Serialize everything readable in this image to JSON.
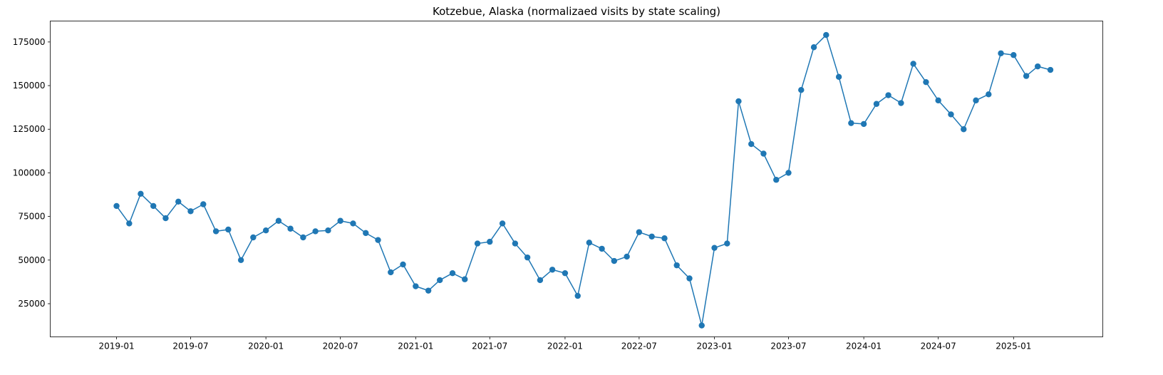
{
  "chart_data": {
    "type": "line",
    "title": "Kotzebue, Alaska (normalizaed visits by state scaling)",
    "xlabel": "",
    "ylabel": "",
    "x_axis_type": "date",
    "xlim": [
      "2018-07-23",
      "2025-08-07"
    ],
    "ylim": [
      6000,
      187000
    ],
    "grid": false,
    "legend": "none",
    "x_ticks": [
      "2019-01",
      "2019-07",
      "2020-01",
      "2020-07",
      "2021-01",
      "2021-07",
      "2022-01",
      "2022-07",
      "2023-01",
      "2023-07",
      "2024-01",
      "2024-07",
      "2025-01"
    ],
    "y_ticks": [
      25000,
      50000,
      75000,
      100000,
      125000,
      150000,
      175000
    ],
    "line_color": "#1f77b4",
    "marker": "circle",
    "series": [
      {
        "x": [
          "2019-01-01",
          "2019-02-01",
          "2019-03-01",
          "2019-04-01",
          "2019-05-01",
          "2019-06-01",
          "2019-07-01",
          "2019-08-01",
          "2019-09-01",
          "2019-10-01",
          "2019-11-01",
          "2019-12-01",
          "2020-01-01",
          "2020-02-01",
          "2020-03-01",
          "2020-04-01",
          "2020-05-01",
          "2020-06-01",
          "2020-07-01",
          "2020-08-01",
          "2020-09-01",
          "2020-10-01",
          "2020-11-01",
          "2020-12-01",
          "2021-01-01",
          "2021-02-01",
          "2021-03-01",
          "2021-04-01",
          "2021-05-01",
          "2021-06-01",
          "2021-07-01",
          "2021-08-01",
          "2021-09-01",
          "2021-10-01",
          "2021-11-01",
          "2021-12-01",
          "2022-01-01",
          "2022-02-01",
          "2022-03-01",
          "2022-04-01",
          "2022-05-01",
          "2022-06-01",
          "2022-07-01",
          "2022-08-01",
          "2022-09-01",
          "2022-10-01",
          "2022-11-01",
          "2022-12-01",
          "2023-01-01",
          "2023-02-01",
          "2023-03-01",
          "2023-04-01",
          "2023-05-01",
          "2023-06-01",
          "2023-07-01",
          "2023-08-01",
          "2023-09-01",
          "2023-10-01",
          "2023-11-01",
          "2023-12-01",
          "2024-01-01",
          "2024-02-01",
          "2024-03-01",
          "2024-04-01",
          "2024-05-01",
          "2024-06-01",
          "2024-07-01",
          "2024-08-01",
          "2024-09-01",
          "2024-10-01",
          "2024-11-01",
          "2024-12-01",
          "2025-01-01",
          "2025-02-01",
          "2025-03-01",
          "2025-04-01"
        ],
        "values": [
          81000,
          71000,
          88000,
          81000,
          74000,
          83500,
          78000,
          82000,
          66500,
          67500,
          50000,
          63000,
          67000,
          72500,
          68000,
          63000,
          66500,
          67000,
          72500,
          71000,
          65500,
          61500,
          43000,
          47500,
          35000,
          32500,
          38500,
          42500,
          39000,
          59500,
          60500,
          71000,
          59500,
          51500,
          38500,
          44500,
          42500,
          29500,
          60000,
          56500,
          49500,
          52000,
          66000,
          63500,
          62500,
          47000,
          39500,
          12500,
          57000,
          59500,
          141000,
          116500,
          111000,
          96000,
          100000,
          147500,
          172000,
          179000,
          155000,
          128500,
          128000,
          139500,
          144500,
          140000,
          162500,
          152000,
          141500,
          133500,
          125000,
          141500,
          145000,
          168500,
          167500,
          155500,
          161000,
          159000
        ]
      }
    ]
  }
}
